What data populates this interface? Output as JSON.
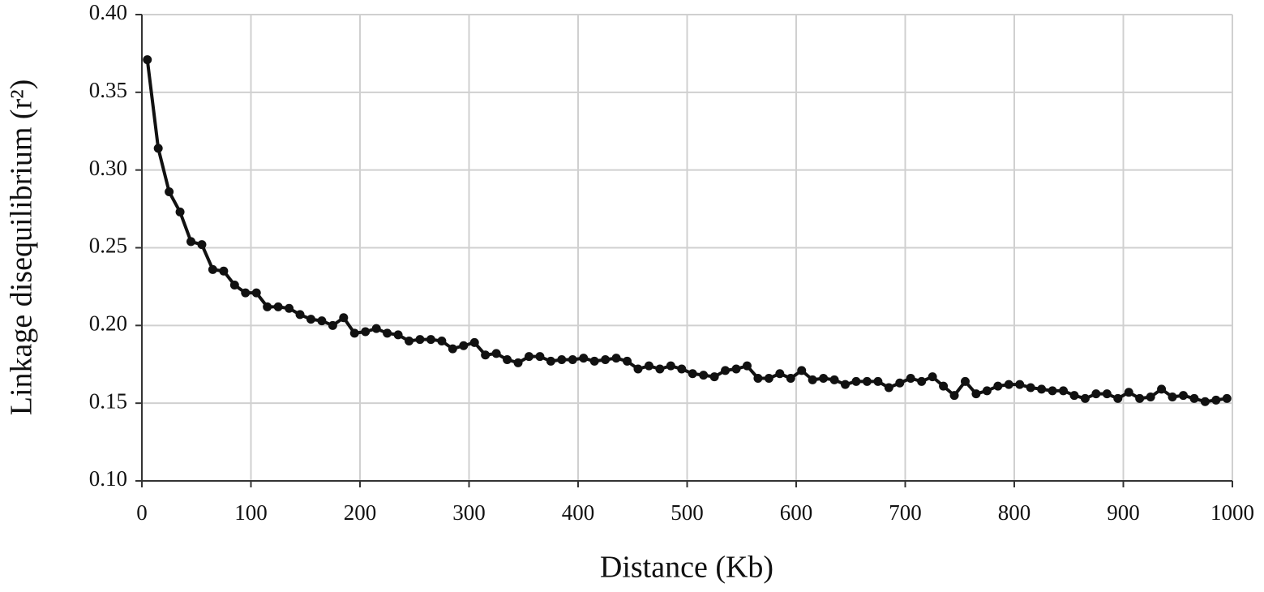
{
  "chart_data": {
    "type": "line",
    "xlabel": "Distance (Kb)",
    "ylabel": "Linkage disequilibrium (r²)",
    "x": [
      5,
      15,
      25,
      35,
      45,
      55,
      65,
      75,
      85,
      95,
      105,
      115,
      125,
      135,
      145,
      155,
      165,
      175,
      185,
      195,
      205,
      215,
      225,
      235,
      245,
      255,
      265,
      275,
      285,
      295,
      305,
      315,
      325,
      335,
      345,
      355,
      365,
      375,
      385,
      395,
      405,
      415,
      425,
      435,
      445,
      455,
      465,
      475,
      485,
      495,
      505,
      515,
      525,
      535,
      545,
      555,
      565,
      575,
      585,
      595,
      605,
      615,
      625,
      635,
      645,
      655,
      665,
      675,
      685,
      695,
      705,
      715,
      725,
      735,
      745,
      755,
      765,
      775,
      785,
      795,
      805,
      815,
      825,
      835,
      845,
      855,
      865,
      875,
      885,
      895,
      905,
      915,
      925,
      935,
      945,
      955,
      965,
      975,
      985,
      995
    ],
    "values": [
      0.371,
      0.314,
      0.286,
      0.273,
      0.254,
      0.252,
      0.236,
      0.235,
      0.226,
      0.221,
      0.221,
      0.212,
      0.212,
      0.211,
      0.207,
      0.204,
      0.203,
      0.2,
      0.205,
      0.195,
      0.196,
      0.198,
      0.195,
      0.194,
      0.19,
      0.191,
      0.191,
      0.19,
      0.185,
      0.187,
      0.189,
      0.181,
      0.182,
      0.178,
      0.176,
      0.18,
      0.18,
      0.177,
      0.178,
      0.178,
      0.179,
      0.177,
      0.178,
      0.179,
      0.177,
      0.172,
      0.174,
      0.172,
      0.174,
      0.172,
      0.169,
      0.168,
      0.167,
      0.171,
      0.172,
      0.174,
      0.166,
      0.166,
      0.169,
      0.166,
      0.171,
      0.165,
      0.166,
      0.165,
      0.162,
      0.164,
      0.164,
      0.164,
      0.16,
      0.163,
      0.166,
      0.164,
      0.167,
      0.161,
      0.155,
      0.164,
      0.156,
      0.158,
      0.161,
      0.162,
      0.162,
      0.16,
      0.159,
      0.158,
      0.158,
      0.155,
      0.153,
      0.156,
      0.156,
      0.153,
      0.157,
      0.153,
      0.154,
      0.159,
      0.154,
      0.155,
      0.153,
      0.151,
      0.152,
      0.153
    ],
    "color": "#111111",
    "xlim": [
      0,
      1000
    ],
    "xticks": [
      0,
      100,
      200,
      300,
      400,
      500,
      600,
      700,
      800,
      900,
      1000
    ],
    "ylim": [
      0.1,
      0.4
    ],
    "yticks": [
      {
        "value": 0.1,
        "label": "0.10"
      },
      {
        "value": 0.15,
        "label": "0.15"
      },
      {
        "value": 0.2,
        "label": "0.20"
      },
      {
        "value": 0.25,
        "label": "0.25"
      },
      {
        "value": 0.3,
        "label": "0.30"
      },
      {
        "value": 0.35,
        "label": "0.35"
      },
      {
        "value": 0.4,
        "label": "0.40"
      }
    ],
    "grid": true
  }
}
